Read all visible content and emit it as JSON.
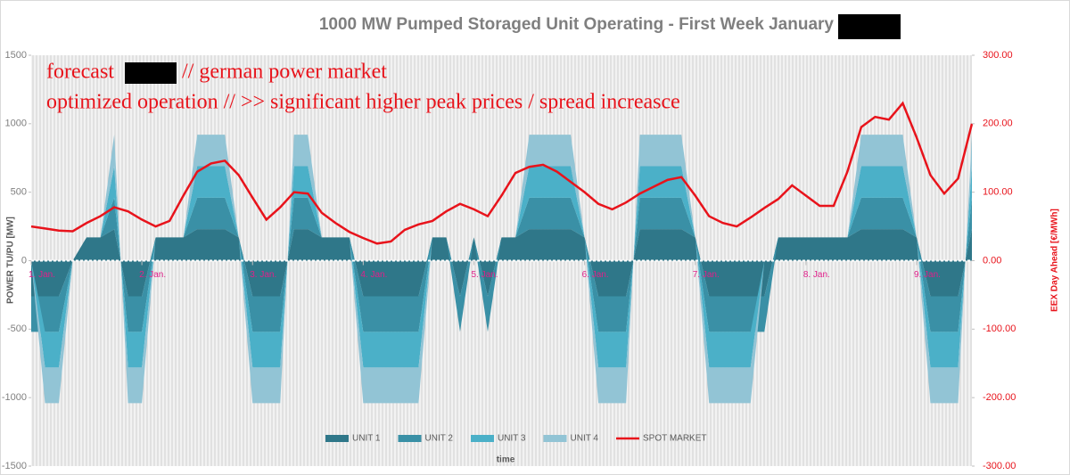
{
  "chart_data": {
    "type": "stacked_area_line",
    "title": "1000 MW Pumped Storaged Unit Operating - First Week January",
    "annotations": [
      "forecast",
      "// german power market",
      "optimized operation // >> significant higher peak prices / spread increasce"
    ],
    "xlabel": "time",
    "ylabel": "POWER TU/PU [MW]",
    "y2label": "EEX Day Ahead [€/MWh]",
    "x": [
      0,
      3,
      6,
      9,
      12,
      15,
      18,
      21,
      24,
      27,
      30,
      33,
      36,
      39,
      42,
      45,
      48,
      51,
      54,
      57,
      60,
      63,
      66,
      69,
      72,
      75,
      78,
      81,
      84,
      87,
      90,
      93,
      96,
      99,
      102,
      105,
      108,
      111,
      114,
      117,
      120,
      123,
      126,
      129,
      132,
      135,
      138,
      141,
      144,
      147,
      150,
      153,
      156,
      159,
      162,
      165,
      168,
      171,
      174,
      177,
      180,
      183,
      186,
      189,
      192,
      195,
      198,
      201,
      204
    ],
    "xlim": [
      0,
      204
    ],
    "xticks": [
      {
        "value": 0,
        "label": "1. Jan."
      },
      {
        "value": 24,
        "label": "2. Jan."
      },
      {
        "value": 48,
        "label": "3. Jan."
      },
      {
        "value": 72,
        "label": "4. Jan."
      },
      {
        "value": 96,
        "label": "5. Jan."
      },
      {
        "value": 120,
        "label": "6. Jan."
      },
      {
        "value": 144,
        "label": "7. Jan."
      },
      {
        "value": 168,
        "label": "8. Jan."
      },
      {
        "value": 192,
        "label": "9. Jan."
      }
    ],
    "ylim": [
      -1500,
      1500
    ],
    "yticks": [
      -1500,
      -1000,
      -500,
      0,
      500,
      1000,
      1500
    ],
    "y2lim": [
      -300,
      300
    ],
    "y2ticks": [
      {
        "value": -300,
        "label": "-300.00"
      },
      {
        "value": -200,
        "label": "-200.00"
      },
      {
        "value": -100,
        "label": "-100.00"
      },
      {
        "value": 0,
        "label": "0.00"
      },
      {
        "value": 100,
        "label": "100.00"
      },
      {
        "value": 200,
        "label": "200.00"
      },
      {
        "value": 300,
        "label": "300.00"
      }
    ],
    "series": [
      {
        "name": "UNIT 1",
        "color": "#2f7789",
        "values": [
          -260,
          -260,
          -260,
          0,
          170,
          170,
          230,
          -260,
          -260,
          170,
          170,
          170,
          230,
          230,
          230,
          170,
          -260,
          -260,
          -260,
          230,
          230,
          170,
          170,
          170,
          -260,
          -260,
          -260,
          -260,
          -260,
          170,
          170,
          -260,
          170,
          -260,
          170,
          170,
          230,
          230,
          230,
          230,
          170,
          -260,
          -260,
          -260,
          230,
          230,
          230,
          230,
          170,
          -260,
          -260,
          -260,
          -260,
          -260,
          170,
          170,
          170,
          170,
          170,
          170,
          230,
          230,
          230,
          230,
          170,
          -260,
          -260,
          -260,
          230
        ]
      },
      {
        "name": "UNIT 2",
        "color": "#3a90a6",
        "values": [
          -260,
          -260,
          -260,
          0,
          0,
          0,
          230,
          -260,
          -260,
          0,
          0,
          0,
          230,
          230,
          230,
          0,
          -260,
          -260,
          -260,
          230,
          230,
          0,
          0,
          0,
          -260,
          -260,
          -260,
          -260,
          -260,
          0,
          0,
          -260,
          0,
          -260,
          0,
          0,
          230,
          230,
          230,
          230,
          0,
          -260,
          -260,
          -260,
          230,
          230,
          230,
          230,
          0,
          -260,
          -260,
          -260,
          -260,
          -260,
          0,
          0,
          0,
          0,
          0,
          0,
          230,
          230,
          230,
          230,
          0,
          -260,
          -260,
          -260,
          230
        ]
      },
      {
        "name": "UNIT 3",
        "color": "#4bb0c8",
        "values": [
          0,
          -260,
          -260,
          0,
          0,
          0,
          230,
          -260,
          -260,
          0,
          0,
          0,
          230,
          230,
          230,
          0,
          -260,
          -260,
          -260,
          230,
          230,
          0,
          0,
          0,
          -260,
          -260,
          -260,
          -260,
          -260,
          0,
          0,
          0,
          0,
          0,
          0,
          0,
          230,
          230,
          230,
          230,
          0,
          -260,
          -260,
          -260,
          230,
          230,
          230,
          230,
          0,
          -260,
          -260,
          -260,
          -260,
          0,
          0,
          0,
          0,
          0,
          0,
          0,
          230,
          230,
          230,
          230,
          0,
          -260,
          -260,
          -260,
          230
        ]
      },
      {
        "name": "UNIT 4",
        "color": "#92c4d5",
        "values": [
          0,
          -260,
          -260,
          0,
          0,
          0,
          230,
          -260,
          -260,
          0,
          0,
          0,
          230,
          230,
          230,
          0,
          -260,
          -260,
          -260,
          230,
          230,
          0,
          0,
          0,
          -260,
          -260,
          -260,
          -260,
          -260,
          0,
          0,
          0,
          0,
          0,
          0,
          0,
          230,
          230,
          230,
          230,
          0,
          -260,
          -260,
          -260,
          230,
          230,
          230,
          230,
          0,
          -260,
          -260,
          -260,
          -260,
          0,
          0,
          0,
          0,
          0,
          0,
          0,
          230,
          230,
          230,
          230,
          0,
          -260,
          -260,
          -260,
          230
        ]
      },
      {
        "name": "SPOT MARKET",
        "color": "#e8131b",
        "axis": "y2",
        "values": [
          50,
          47,
          44,
          43,
          55,
          65,
          78,
          72,
          60,
          50,
          58,
          95,
          130,
          142,
          146,
          125,
          92,
          60,
          78,
          100,
          98,
          70,
          55,
          42,
          33,
          25,
          28,
          45,
          53,
          58,
          72,
          83,
          75,
          65,
          95,
          128,
          137,
          140,
          130,
          115,
          100,
          83,
          75,
          85,
          98,
          108,
          118,
          122,
          95,
          65,
          55,
          50,
          63,
          77,
          90,
          110,
          95,
          80,
          80,
          130,
          195,
          210,
          206,
          230,
          180,
          125,
          98,
          120,
          200
        ]
      }
    ]
  }
}
